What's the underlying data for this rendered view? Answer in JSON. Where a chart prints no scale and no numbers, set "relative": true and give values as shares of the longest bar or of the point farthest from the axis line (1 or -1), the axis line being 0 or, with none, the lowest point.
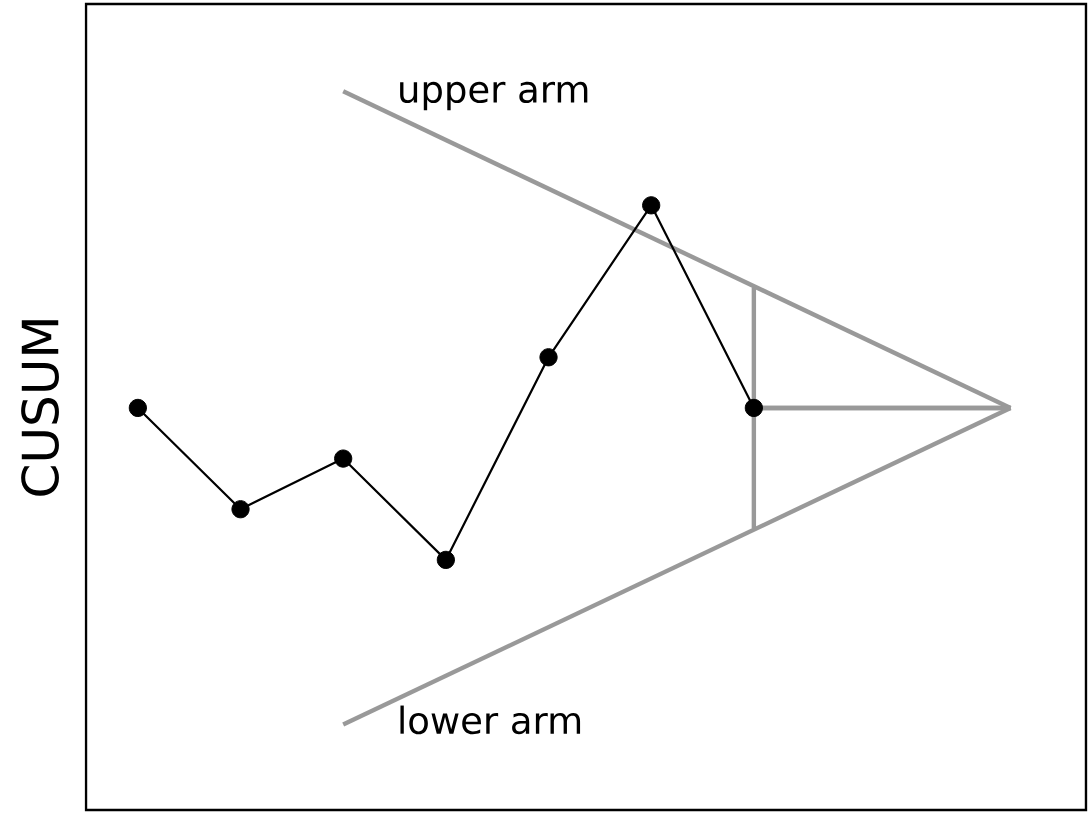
{
  "chart_data": {
    "type": "line",
    "ylabel": "CUSUM",
    "relative": true,
    "marker": "circle",
    "categories": [
      null,
      null,
      null,
      null,
      null,
      null,
      null,
      null,
      null,
      null,
      null,
      null,
      null,
      null,
      null,
      null,
      null,
      null,
      null
    ],
    "series": [
      {
        "name": "upper arm",
        "color": "#999999",
        "marker": "none",
        "values": [
          null,
          null,
          null,
          null,
          1.0,
          null,
          null,
          null,
          null,
          null,
          null,
          null,
          null,
          null,
          null,
          null,
          null,
          0.5,
          null
        ]
      },
      {
        "name": "lower arm",
        "color": "#999999",
        "marker": "none",
        "values": [
          null,
          null,
          null,
          null,
          0.0,
          null,
          null,
          null,
          null,
          null,
          null,
          null,
          null,
          null,
          null,
          null,
          null,
          0.5,
          null
        ]
      },
      {
        "type": "step",
        "color": "#999999",
        "marker": "none",
        "values": [
          null,
          null,
          null,
          null,
          null,
          null,
          null,
          null,
          null,
          null,
          null,
          null,
          0.69,
          null,
          null,
          null,
          null,
          0.5,
          null
        ]
      },
      {
        "type": "step",
        "color": "#999999",
        "marker": "none",
        "values": [
          null,
          null,
          null,
          null,
          null,
          null,
          null,
          null,
          null,
          null,
          null,
          null,
          0.31,
          null,
          null,
          null,
          null,
          0.5,
          null
        ]
      },
      {
        "color": "#000000",
        "values": [
          0.5,
          null,
          0.34,
          null,
          0.42,
          null,
          0.26,
          null,
          0.58,
          null,
          0.82,
          null,
          0.5,
          null,
          null,
          null,
          null,
          null,
          null
        ]
      }
    ]
  }
}
